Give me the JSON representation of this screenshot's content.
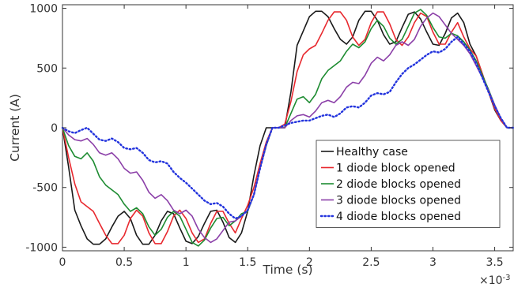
{
  "chart_data": {
    "type": "line",
    "xlabel": "Time (s)",
    "ylabel": "Current (A)",
    "x_exponent_label": "×10",
    "x_exponent_power": "-3",
    "xlim": [
      0,
      3.65
    ],
    "ylim": [
      -1030,
      1030
    ],
    "xticks": [
      0,
      0.5,
      1,
      1.5,
      2,
      2.5,
      3,
      3.5
    ],
    "xtick_labels": [
      "0",
      "0.5",
      "1",
      "1.5",
      "2",
      "2.5",
      "3",
      "3.5"
    ],
    "yticks": [
      -1000,
      -500,
      0,
      500,
      1000
    ],
    "ytick_labels": [
      "-1000",
      "-500",
      "0",
      "500",
      "1000"
    ],
    "grid": false,
    "legend_position": "bottom-right",
    "series": [
      {
        "name": "Healthy case",
        "color": "#1a1a1a",
        "dash": "solid",
        "x": [
          0,
          0.05,
          0.1,
          0.15,
          0.2,
          0.25,
          0.3,
          0.35,
          0.4,
          0.45,
          0.5,
          0.55,
          0.6,
          0.65,
          0.7,
          0.75,
          0.8,
          0.85,
          0.9,
          0.95,
          1.0,
          1.05,
          1.1,
          1.15,
          1.2,
          1.25,
          1.3,
          1.35,
          1.4,
          1.45,
          1.5,
          1.55,
          1.6,
          1.65,
          1.7,
          1.75,
          1.8,
          1.85,
          1.9,
          1.95,
          2.0,
          2.05,
          2.1,
          2.15,
          2.2,
          2.25,
          2.3,
          2.35,
          2.4,
          2.45,
          2.5,
          2.55,
          2.6,
          2.65,
          2.7,
          2.75,
          2.8,
          2.85,
          2.9,
          2.95,
          3.0,
          3.05,
          3.1,
          3.15,
          3.2,
          3.25,
          3.3,
          3.35,
          3.4,
          3.45,
          3.5,
          3.55,
          3.6,
          3.65
        ],
        "y": [
          0,
          -330,
          -690,
          -820,
          -930,
          -975,
          -975,
          -930,
          -830,
          -740,
          -700,
          -760,
          -900,
          -975,
          -975,
          -900,
          -780,
          -700,
          -720,
          -840,
          -950,
          -970,
          -910,
          -800,
          -700,
          -690,
          -790,
          -920,
          -960,
          -880,
          -700,
          -400,
          -150,
          0,
          0,
          0,
          0,
          300,
          690,
          810,
          930,
          975,
          975,
          930,
          830,
          740,
          700,
          760,
          900,
          975,
          975,
          900,
          780,
          700,
          720,
          840,
          950,
          970,
          910,
          800,
          700,
          690,
          790,
          920,
          960,
          880,
          700,
          600,
          450,
          300,
          150,
          60,
          0,
          0
        ]
      },
      {
        "name": "1 diode block opened",
        "color": "#e8292f",
        "dash": "solid",
        "x": [
          0,
          0.05,
          0.1,
          0.15,
          0.2,
          0.25,
          0.3,
          0.35,
          0.4,
          0.45,
          0.5,
          0.55,
          0.6,
          0.65,
          0.7,
          0.75,
          0.8,
          0.85,
          0.9,
          0.95,
          1.0,
          1.05,
          1.1,
          1.15,
          1.2,
          1.25,
          1.3,
          1.35,
          1.4,
          1.45,
          1.5,
          1.55,
          1.6,
          1.65,
          1.7,
          1.75,
          1.8,
          1.85,
          1.9,
          1.95,
          2.0,
          2.05,
          2.1,
          2.15,
          2.2,
          2.25,
          2.3,
          2.35,
          2.4,
          2.45,
          2.5,
          2.55,
          2.6,
          2.65,
          2.7,
          2.75,
          2.8,
          2.85,
          2.9,
          2.95,
          3.0,
          3.05,
          3.1,
          3.15,
          3.2,
          3.25,
          3.3,
          3.35,
          3.4,
          3.45,
          3.5,
          3.55,
          3.6,
          3.65
        ],
        "y": [
          0,
          -250,
          -470,
          -620,
          -660,
          -700,
          -800,
          -900,
          -970,
          -970,
          -900,
          -760,
          -690,
          -740,
          -880,
          -970,
          -970,
          -870,
          -740,
          -690,
          -760,
          -880,
          -960,
          -930,
          -800,
          -700,
          -700,
          -800,
          -880,
          -760,
          -650,
          -500,
          -300,
          -120,
          0,
          0,
          30,
          220,
          470,
          610,
          660,
          690,
          790,
          900,
          970,
          970,
          900,
          760,
          690,
          740,
          880,
          970,
          970,
          870,
          740,
          690,
          760,
          880,
          960,
          930,
          800,
          700,
          700,
          800,
          880,
          760,
          660,
          600,
          450,
          300,
          160,
          60,
          0,
          0
        ]
      },
      {
        "name": "2 diode blocks opened",
        "color": "#1e8c32",
        "dash": "solid",
        "x": [
          0,
          0.05,
          0.1,
          0.15,
          0.2,
          0.25,
          0.3,
          0.35,
          0.4,
          0.45,
          0.5,
          0.55,
          0.6,
          0.65,
          0.7,
          0.75,
          0.8,
          0.85,
          0.9,
          0.95,
          1.0,
          1.05,
          1.1,
          1.15,
          1.2,
          1.25,
          1.3,
          1.35,
          1.4,
          1.45,
          1.5,
          1.55,
          1.6,
          1.65,
          1.7,
          1.75,
          1.8,
          1.85,
          1.9,
          1.95,
          2.0,
          2.05,
          2.1,
          2.15,
          2.2,
          2.25,
          2.3,
          2.35,
          2.4,
          2.45,
          2.5,
          2.55,
          2.6,
          2.65,
          2.7,
          2.75,
          2.8,
          2.85,
          2.9,
          2.95,
          3.0,
          3.05,
          3.1,
          3.15,
          3.2,
          3.25,
          3.3,
          3.35,
          3.4,
          3.45,
          3.5,
          3.55,
          3.6,
          3.65
        ],
        "y": [
          0,
          -150,
          -240,
          -260,
          -210,
          -280,
          -410,
          -480,
          -520,
          -560,
          -640,
          -700,
          -670,
          -720,
          -830,
          -900,
          -850,
          -750,
          -700,
          -740,
          -850,
          -960,
          -990,
          -940,
          -840,
          -760,
          -750,
          -820,
          -780,
          -720,
          -700,
          -560,
          -340,
          -150,
          0,
          0,
          0,
          120,
          240,
          260,
          210,
          280,
          410,
          480,
          520,
          560,
          640,
          700,
          670,
          720,
          830,
          900,
          850,
          750,
          700,
          740,
          850,
          960,
          990,
          940,
          840,
          760,
          750,
          790,
          770,
          720,
          650,
          560,
          440,
          320,
          190,
          80,
          0,
          0
        ]
      },
      {
        "name": "3 diode blocks opened",
        "color": "#8b3fa8",
        "dash": "solid",
        "x": [
          0,
          0.05,
          0.1,
          0.15,
          0.2,
          0.25,
          0.3,
          0.35,
          0.4,
          0.45,
          0.5,
          0.55,
          0.6,
          0.65,
          0.7,
          0.75,
          0.8,
          0.85,
          0.9,
          0.95,
          1.0,
          1.05,
          1.1,
          1.15,
          1.2,
          1.25,
          1.3,
          1.35,
          1.4,
          1.45,
          1.5,
          1.55,
          1.6,
          1.65,
          1.7,
          1.75,
          1.8,
          1.85,
          1.9,
          1.95,
          2.0,
          2.05,
          2.1,
          2.15,
          2.2,
          2.25,
          2.3,
          2.35,
          2.4,
          2.45,
          2.5,
          2.55,
          2.6,
          2.65,
          2.7,
          2.75,
          2.8,
          2.85,
          2.9,
          2.95,
          3.0,
          3.05,
          3.1,
          3.15,
          3.2,
          3.25,
          3.3,
          3.35,
          3.4,
          3.45,
          3.5,
          3.55,
          3.6,
          3.65
        ],
        "y": [
          0,
          -60,
          -100,
          -110,
          -90,
          -140,
          -210,
          -230,
          -210,
          -260,
          -340,
          -380,
          -370,
          -440,
          -540,
          -590,
          -560,
          -610,
          -690,
          -720,
          -690,
          -740,
          -850,
          -920,
          -960,
          -930,
          -860,
          -790,
          -780,
          -740,
          -690,
          -560,
          -340,
          -140,
          0,
          0,
          0,
          60,
          100,
          110,
          90,
          140,
          210,
          230,
          210,
          260,
          340,
          380,
          370,
          440,
          540,
          590,
          560,
          610,
          690,
          720,
          690,
          740,
          850,
          920,
          960,
          930,
          860,
          790,
          740,
          690,
          620,
          520,
          420,
          310,
          190,
          80,
          0,
          0
        ]
      },
      {
        "name": "4 diode blocks opened",
        "color": "#2233dd",
        "dash": "dot",
        "x": [
          0,
          0.05,
          0.1,
          0.15,
          0.2,
          0.25,
          0.3,
          0.35,
          0.4,
          0.45,
          0.5,
          0.55,
          0.6,
          0.65,
          0.7,
          0.75,
          0.8,
          0.85,
          0.9,
          0.95,
          1.0,
          1.05,
          1.1,
          1.15,
          1.2,
          1.25,
          1.3,
          1.35,
          1.4,
          1.45,
          1.5,
          1.55,
          1.6,
          1.65,
          1.7,
          1.75,
          1.8,
          1.85,
          1.9,
          1.95,
          2.0,
          2.05,
          2.1,
          2.15,
          2.2,
          2.25,
          2.3,
          2.35,
          2.4,
          2.45,
          2.5,
          2.55,
          2.6,
          2.65,
          2.7,
          2.75,
          2.8,
          2.85,
          2.9,
          2.95,
          3.0,
          3.05,
          3.1,
          3.15,
          3.2,
          3.25,
          3.3,
          3.35,
          3.4,
          3.45,
          3.5,
          3.55,
          3.6,
          3.65
        ],
        "y": [
          0,
          -30,
          -45,
          -20,
          0,
          -50,
          -100,
          -110,
          -90,
          -120,
          -170,
          -180,
          -170,
          -210,
          -270,
          -290,
          -280,
          -300,
          -370,
          -420,
          -460,
          -510,
          -560,
          -610,
          -640,
          -630,
          -660,
          -720,
          -760,
          -740,
          -690,
          -560,
          -340,
          -140,
          0,
          0,
          20,
          40,
          50,
          60,
          60,
          80,
          100,
          110,
          90,
          120,
          170,
          180,
          170,
          210,
          270,
          290,
          280,
          300,
          380,
          450,
          500,
          530,
          570,
          610,
          640,
          630,
          660,
          720,
          760,
          700,
          640,
          540,
          420,
          300,
          180,
          80,
          0,
          0
        ]
      }
    ]
  }
}
